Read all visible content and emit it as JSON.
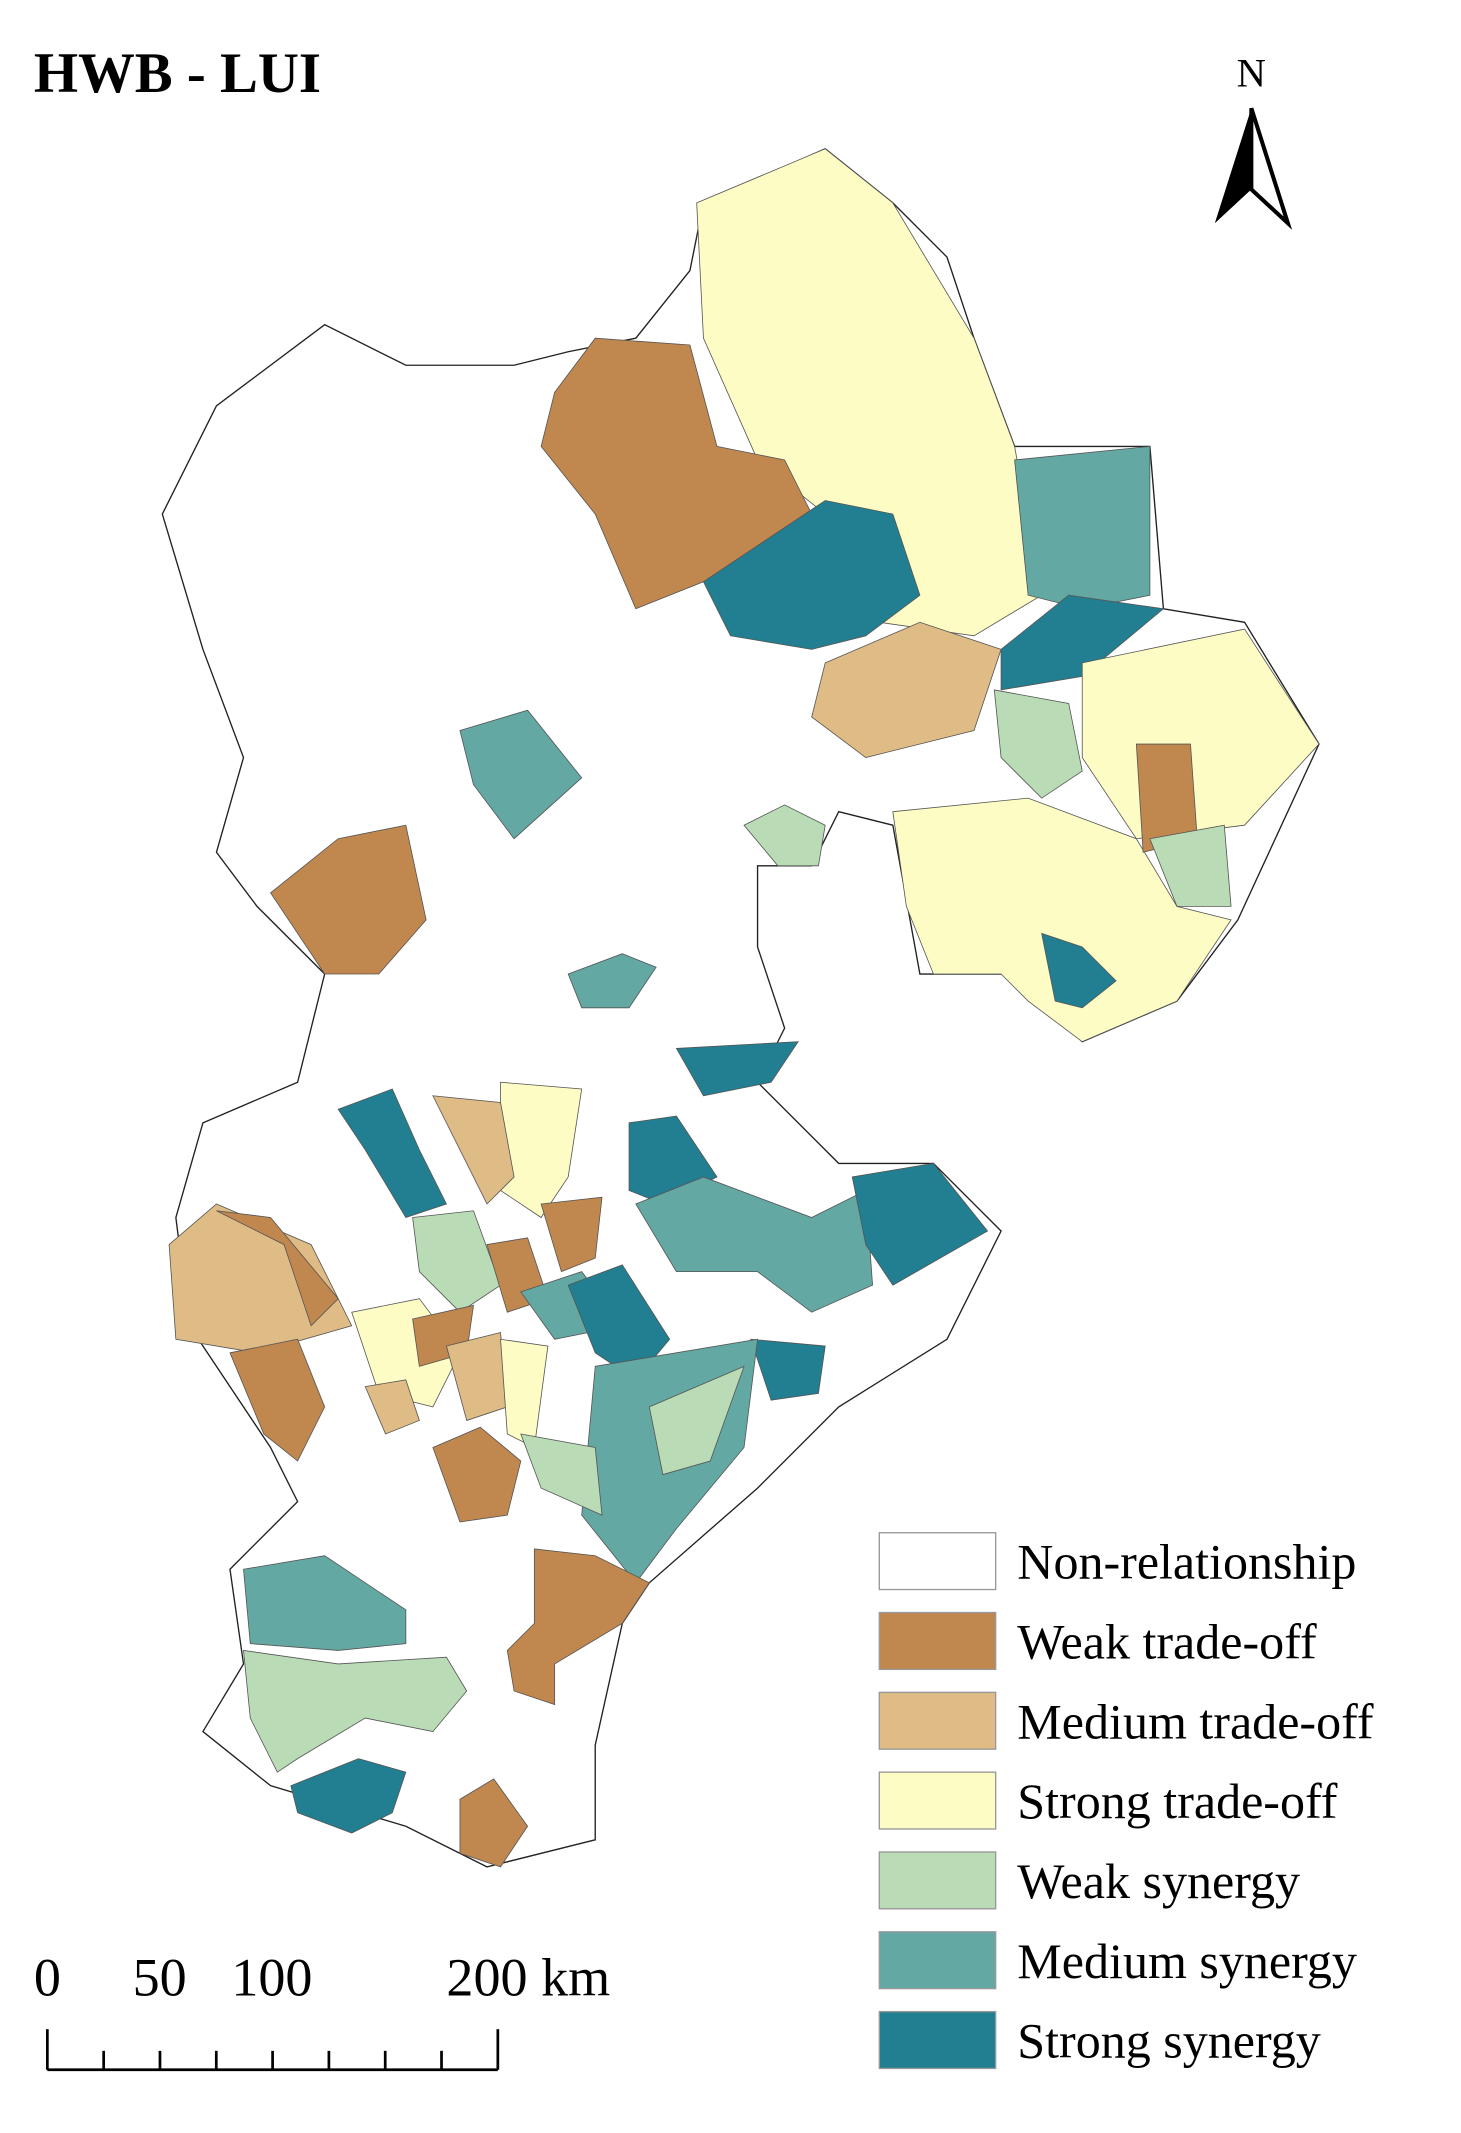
{
  "title": "HWB - LUI",
  "north_label": "N",
  "scale_bar": {
    "labels": [
      "0",
      "50",
      "100",
      "200 km"
    ]
  },
  "legend": {
    "items": [
      {
        "label": "Non-relationship",
        "color": "#ffffff"
      },
      {
        "label": "Weak trade-off",
        "color": "#c0874f"
      },
      {
        "label": "Medium trade-off",
        "color": "#dfbb85"
      },
      {
        "label": "Strong trade-off",
        "color": "#fdfcc4"
      },
      {
        "label": "Weak synergy",
        "color": "#b9dbb6"
      },
      {
        "label": "Medium synergy",
        "color": "#63a8a3"
      },
      {
        "label": "Strong synergy",
        "color": "#217f91"
      }
    ]
  }
}
